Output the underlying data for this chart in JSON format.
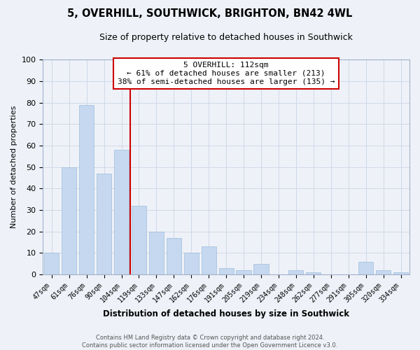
{
  "title": "5, OVERHILL, SOUTHWICK, BRIGHTON, BN42 4WL",
  "subtitle": "Size of property relative to detached houses in Southwick",
  "xlabel": "Distribution of detached houses by size in Southwick",
  "ylabel": "Number of detached properties",
  "categories": [
    "47sqm",
    "61sqm",
    "76sqm",
    "90sqm",
    "104sqm",
    "119sqm",
    "133sqm",
    "147sqm",
    "162sqm",
    "176sqm",
    "191sqm",
    "205sqm",
    "219sqm",
    "234sqm",
    "248sqm",
    "262sqm",
    "277sqm",
    "291sqm",
    "305sqm",
    "320sqm",
    "334sqm"
  ],
  "values": [
    10,
    50,
    79,
    47,
    58,
    32,
    20,
    17,
    10,
    13,
    3,
    2,
    5,
    0,
    2,
    1,
    0,
    0,
    6,
    2,
    1
  ],
  "bar_color": "#c5d8f0",
  "bar_edge_color": "#a0bcd8",
  "vline_x": 4.5,
  "vline_color": "#cc0000",
  "annotation_title": "5 OVERHILL: 112sqm",
  "annotation_line1": "← 61% of detached houses are smaller (213)",
  "annotation_line2": "38% of semi-detached houses are larger (135) →",
  "annotation_box_color": "#ffffff",
  "annotation_box_edge": "#cc0000",
  "ylim": [
    0,
    100
  ],
  "yticks": [
    0,
    10,
    20,
    30,
    40,
    50,
    60,
    70,
    80,
    90,
    100
  ],
  "grid_color": "#d0d8e8",
  "background_color": "#eef2f8",
  "footnote1": "Contains HM Land Registry data © Crown copyright and database right 2024.",
  "footnote2": "Contains public sector information licensed under the Open Government Licence v3.0."
}
